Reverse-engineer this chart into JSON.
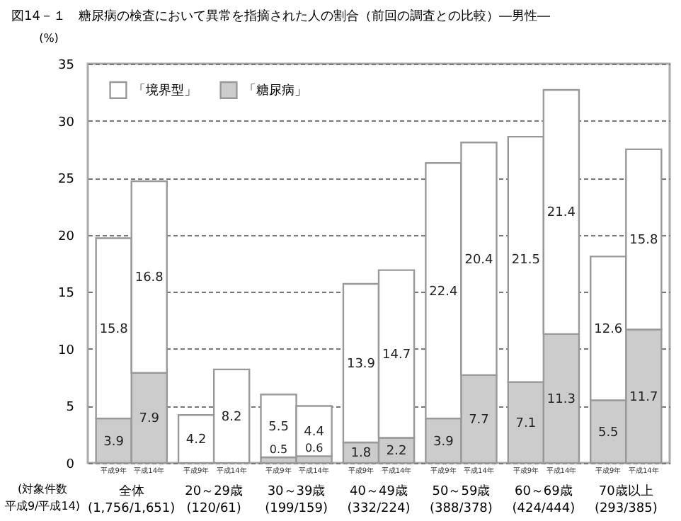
{
  "chart_data": {
    "type": "bar",
    "title": "図14－１　糖尿病の検査において異常を指摘された人の割合（前回の調査との比較）―男性―",
    "ylabel": "(%)",
    "categories": [
      "平成9年",
      "平成14年",
      "平成9年",
      "平成14年",
      "平成9年",
      "平成14年",
      "平成9年",
      "平成14年",
      "平成9年",
      "平成14年",
      "平成9年",
      "平成14年",
      "平成9年",
      "平成14年"
    ],
    "stacked": true,
    "series": [
      {
        "name": "「糖尿病」",
        "color": "#cccccc",
        "values": [
          3.9,
          7.9,
          0,
          0,
          0.5,
          0.6,
          1.8,
          2.2,
          3.9,
          7.7,
          7.1,
          11.3,
          5.5,
          11.7
        ],
        "value_labels": [
          "3.9",
          "7.9",
          null,
          null,
          "0.5",
          "0.6",
          "1.8",
          "2.2",
          "3.9",
          "7.7",
          "7.1",
          "11.3",
          "5.5",
          "11.7"
        ]
      },
      {
        "name": "「境界型」",
        "color": "#ffffff",
        "values": [
          15.8,
          16.8,
          4.2,
          8.2,
          5.5,
          4.4,
          13.9,
          14.7,
          22.4,
          20.4,
          21.5,
          21.4,
          12.6,
          15.8
        ],
        "value_labels": [
          "15.8",
          "16.8",
          "4.2",
          "8.2",
          "5.5",
          "4.4",
          "13.9",
          "14.7",
          "22.4",
          "20.4",
          "21.5",
          "21.4",
          "12.6",
          "15.8"
        ]
      }
    ],
    "annotations": [
      "(対象件数",
      "平成9/平成14)",
      "全体\n(1,756/1,651)",
      "20～29歳\n(120/61)",
      "30～39歳\n(199/159)",
      "40～49歳\n(332/224)",
      "50～59歳\n(388/378)",
      "60～69歳\n(424/444)",
      "70歳以上\n(293/385)"
    ],
    "ylim": [
      0,
      35
    ],
    "yticks": [
      0,
      5,
      10,
      15,
      20,
      25,
      30,
      35
    ],
    "grid": "y",
    "legend": "top left"
  }
}
